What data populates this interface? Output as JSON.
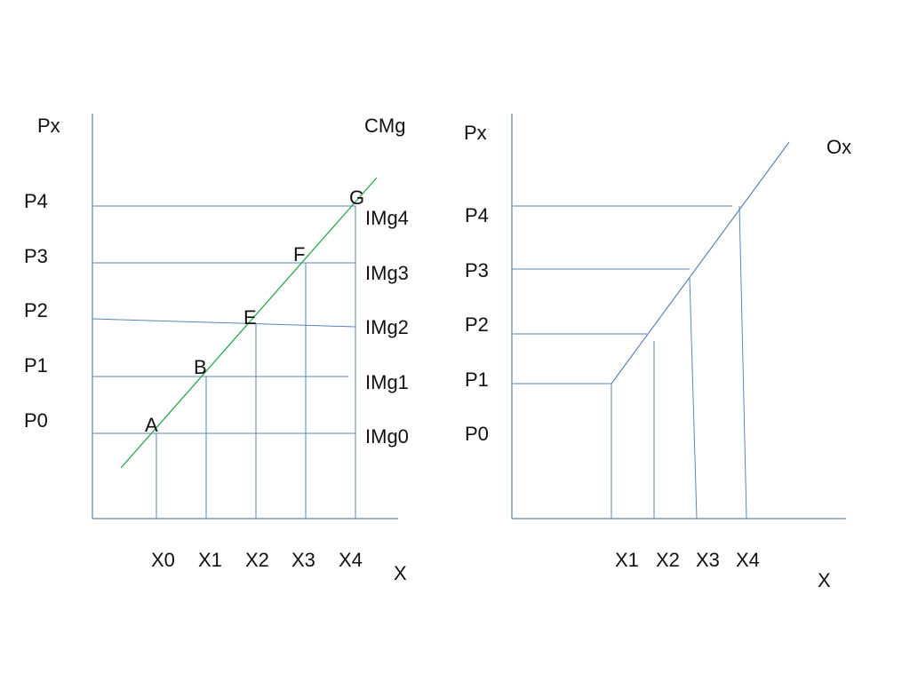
{
  "colors": {
    "axis": "#5b84b8",
    "cmg_curve": "#2aa84a",
    "text": "#111111",
    "background": "#ffffff"
  },
  "left_panel": {
    "y_axis_label": "Px",
    "x_axis_label": "X",
    "curve_label": "CMg",
    "price_labels": [
      "P4",
      "P3",
      "P2",
      "P1",
      "P0"
    ],
    "img_labels": [
      "IMg4",
      "IMg3",
      "IMg2",
      "IMg1",
      "IMg0"
    ],
    "point_labels": [
      "A",
      "B",
      "E",
      "F",
      "G"
    ],
    "x_labels": [
      "X0",
      "X1",
      "X2",
      "X3",
      "X4"
    ]
  },
  "right_panel": {
    "y_axis_label": "Px",
    "x_axis_label": "X",
    "curve_label": "Ox",
    "price_labels": [
      "P4",
      "P3",
      "P2",
      "P1",
      "P0"
    ],
    "x_labels": [
      "X1",
      "X2",
      "X3",
      "X4"
    ]
  }
}
